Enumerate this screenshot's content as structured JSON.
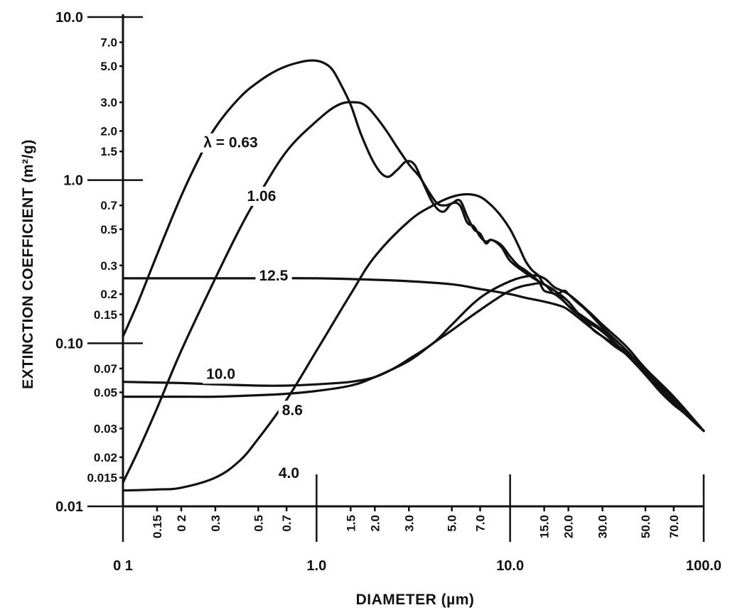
{
  "chart_data": {
    "type": "line",
    "title": "",
    "xlabel": "DIAMETER (µm)",
    "ylabel": "EXTINCTION COEFFICIENT (m²/g)",
    "xscale": "log",
    "yscale": "log",
    "xlim": [
      0.1,
      100.0
    ],
    "ylim": [
      0.01,
      10.0
    ],
    "grid": false,
    "x_major_ticks": [
      {
        "value": 0.1,
        "label": "0 1"
      },
      {
        "value": 1.0,
        "label": "1.0"
      },
      {
        "value": 10.0,
        "label": "10.0"
      },
      {
        "value": 100.0,
        "label": "100.0"
      }
    ],
    "x_minor_ticks": [
      {
        "value": 0.15,
        "label": "0.15"
      },
      {
        "value": 0.2,
        "label": "0 2"
      },
      {
        "value": 0.3,
        "label": "0.3"
      },
      {
        "value": 0.5,
        "label": "0.5"
      },
      {
        "value": 0.7,
        "label": "0.7"
      },
      {
        "value": 1.5,
        "label": "1.5"
      },
      {
        "value": 2.0,
        "label": "2.0"
      },
      {
        "value": 3.0,
        "label": "3.0"
      },
      {
        "value": 5.0,
        "label": "5.0"
      },
      {
        "value": 7.0,
        "label": "7.0"
      },
      {
        "value": 15.0,
        "label": "15.0"
      },
      {
        "value": 20.0,
        "label": "20.0"
      },
      {
        "value": 30.0,
        "label": "30.0"
      },
      {
        "value": 50.0,
        "label": "50.0"
      },
      {
        "value": 70.0,
        "label": "70.0"
      }
    ],
    "y_major_ticks": [
      {
        "value": 10.0,
        "label": "10.0"
      },
      {
        "value": 1.0,
        "label": "1.0"
      },
      {
        "value": 0.1,
        "label": "0.10"
      },
      {
        "value": 0.01,
        "label": "0.01"
      }
    ],
    "y_minor_ticks": [
      {
        "value": 7.0,
        "label": "7.0"
      },
      {
        "value": 5.0,
        "label": "5.0"
      },
      {
        "value": 3.0,
        "label": "3.0"
      },
      {
        "value": 2.0,
        "label": "2.0"
      },
      {
        "value": 1.5,
        "label": "1.5"
      },
      {
        "value": 0.7,
        "label": "0.7"
      },
      {
        "value": 0.5,
        "label": "0.5"
      },
      {
        "value": 0.3,
        "label": "0.3"
      },
      {
        "value": 0.2,
        "label": "0.2"
      },
      {
        "value": 0.15,
        "label": "0.15"
      },
      {
        "value": 0.07,
        "label": "0.07"
      },
      {
        "value": 0.05,
        "label": "0.05"
      },
      {
        "value": 0.03,
        "label": "0.03"
      },
      {
        "value": 0.02,
        "label": "0.02"
      },
      {
        "value": 0.015,
        "label": "0.015"
      }
    ],
    "series": [
      {
        "name": "λ = 0.63",
        "label_anchor": [
          0.36,
          1.7
        ],
        "x": [
          0.1,
          0.12,
          0.15,
          0.2,
          0.25,
          0.3,
          0.4,
          0.5,
          0.6,
          0.7,
          0.8,
          0.9,
          1.0,
          1.1,
          1.2,
          1.3,
          1.5,
          1.7,
          2.0,
          2.3,
          2.6,
          2.9,
          3.2,
          3.5,
          4.0,
          4.5,
          5.0,
          5.5,
          6.0,
          6.5,
          7.0,
          7.5,
          8.0,
          9.0,
          10.0,
          11.0,
          12.0,
          14.0,
          15.0,
          17.0,
          19.0,
          21.0,
          24.0,
          27.0,
          30.0,
          35.0,
          40.0,
          50.0,
          60.0,
          70.0,
          80.0,
          100.0
        ],
        "y": [
          0.11,
          0.18,
          0.35,
          0.8,
          1.4,
          2.1,
          3.2,
          4.0,
          4.6,
          5.0,
          5.25,
          5.4,
          5.4,
          5.2,
          4.8,
          4.1,
          2.9,
          1.9,
          1.25,
          1.05,
          1.15,
          1.3,
          1.25,
          1.0,
          0.72,
          0.64,
          0.72,
          0.7,
          0.55,
          0.52,
          0.45,
          0.42,
          0.43,
          0.4,
          0.34,
          0.3,
          0.28,
          0.24,
          0.21,
          0.2,
          0.18,
          0.16,
          0.14,
          0.12,
          0.11,
          0.095,
          0.085,
          0.064,
          0.05,
          0.042,
          0.037,
          0.029
        ]
      },
      {
        "name": "1.06",
        "label_anchor": [
          0.52,
          0.8
        ],
        "x": [
          0.1,
          0.12,
          0.15,
          0.2,
          0.3,
          0.4,
          0.5,
          0.7,
          1.0,
          1.3,
          1.6,
          1.8,
          2.0,
          2.3,
          2.6,
          3.0,
          3.4,
          3.8,
          4.2,
          4.6,
          5.0,
          5.5,
          6.0,
          6.5,
          7.0,
          7.5,
          8.0,
          9.0,
          10.0,
          12.0,
          14.0,
          16.0,
          18.0,
          20.0,
          24.0,
          28.0,
          32.0,
          40.0,
          50.0,
          60.0,
          80.0,
          100.0
        ],
        "y": [
          0.014,
          0.022,
          0.04,
          0.09,
          0.25,
          0.5,
          0.8,
          1.5,
          2.3,
          2.9,
          3.0,
          2.85,
          2.5,
          2.0,
          1.6,
          1.25,
          1.05,
          0.85,
          0.72,
          0.7,
          0.72,
          0.75,
          0.6,
          0.5,
          0.47,
          0.41,
          0.43,
          0.39,
          0.32,
          0.27,
          0.24,
          0.22,
          0.2,
          0.18,
          0.14,
          0.125,
          0.11,
          0.085,
          0.065,
          0.052,
          0.037,
          0.029
        ]
      },
      {
        "name": "4.0",
        "label_anchor": [
          0.72,
          0.016
        ],
        "x": [
          0.1,
          0.15,
          0.2,
          0.3,
          0.4,
          0.5,
          0.7,
          1.0,
          1.5,
          2.0,
          3.0,
          4.0,
          5.0,
          6.0,
          7.0,
          8.0,
          9.0,
          10.0,
          11.0,
          12.0,
          13.0,
          14.0,
          15.0,
          17.0,
          20.0,
          25.0,
          30.0,
          40.0,
          50.0,
          70.0,
          100.0
        ],
        "y": [
          0.0125,
          0.0127,
          0.013,
          0.015,
          0.019,
          0.026,
          0.045,
          0.09,
          0.2,
          0.34,
          0.56,
          0.7,
          0.79,
          0.82,
          0.79,
          0.7,
          0.6,
          0.5,
          0.4,
          0.32,
          0.28,
          0.26,
          0.23,
          0.21,
          0.17,
          0.14,
          0.12,
          0.085,
          0.065,
          0.045,
          0.029
        ]
      },
      {
        "name": "8.6",
        "label_anchor": [
          0.75,
          0.039
        ],
        "x": [
          0.1,
          0.2,
          0.3,
          0.5,
          0.7,
          1.0,
          1.5,
          2.0,
          3.0,
          4.0,
          5.0,
          7.0,
          10.0,
          13.0,
          15.0,
          17.0,
          19.0,
          20.0,
          22.0,
          24.0,
          26.0,
          30.0,
          35.0,
          40.0,
          50.0,
          70.0,
          100.0
        ],
        "y": [
          0.047,
          0.047,
          0.047,
          0.048,
          0.049,
          0.051,
          0.055,
          0.062,
          0.078,
          0.1,
          0.12,
          0.16,
          0.21,
          0.23,
          0.23,
          0.2,
          0.21,
          0.2,
          0.18,
          0.165,
          0.15,
          0.125,
          0.105,
          0.09,
          0.068,
          0.046,
          0.029
        ]
      },
      {
        "name": "10.0",
        "label_anchor": [
          0.32,
          0.065
        ],
        "x": [
          0.1,
          0.2,
          0.3,
          0.5,
          0.7,
          1.0,
          1.5,
          2.0,
          2.5,
          3.0,
          4.0,
          5.0,
          7.0,
          10.0,
          13.0,
          15.0,
          17.0,
          20.0,
          25.0,
          30.0,
          40.0,
          50.0,
          70.0,
          100.0
        ],
        "y": [
          0.058,
          0.057,
          0.056,
          0.055,
          0.055,
          0.056,
          0.058,
          0.062,
          0.07,
          0.08,
          0.1,
          0.13,
          0.19,
          0.24,
          0.26,
          0.25,
          0.22,
          0.2,
          0.16,
          0.13,
          0.095,
          0.07,
          0.047,
          0.029
        ]
      },
      {
        "name": "12.5",
        "label_anchor": [
          0.6,
          0.26
        ],
        "x": [
          0.1,
          0.3,
          0.5,
          1.0,
          2.0,
          3.0,
          5.0,
          7.0,
          10.0,
          12.0,
          15.0,
          18.0,
          20.0,
          25.0,
          30.0,
          40.0,
          50.0,
          70.0,
          100.0
        ],
        "y": [
          0.25,
          0.25,
          0.25,
          0.25,
          0.245,
          0.24,
          0.23,
          0.215,
          0.2,
          0.19,
          0.18,
          0.17,
          0.16,
          0.13,
          0.11,
          0.088,
          0.068,
          0.046,
          0.029
        ]
      }
    ]
  }
}
